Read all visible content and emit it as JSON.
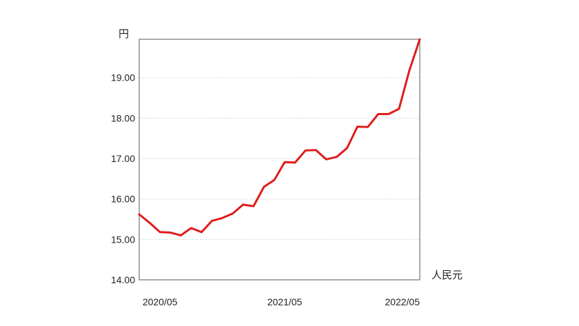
{
  "chart_data": {
    "type": "line",
    "title": "",
    "ylabel_top": "円",
    "xlabel_right": "人民元",
    "ylim": [
      14.0,
      19.95
    ],
    "yticks": [
      "14.00",
      "15.00",
      "16.00",
      "17.00",
      "18.00",
      "19.00"
    ],
    "ytick_values": [
      14.0,
      15.0,
      16.0,
      17.0,
      18.0,
      19.0
    ],
    "xlim": [
      "2020-03",
      "2022-06"
    ],
    "xticks": [
      {
        "label": "2020/05",
        "value": "2020-05"
      },
      {
        "label": "2021/05",
        "value": "2021-05"
      },
      {
        "label": "2022/05",
        "value": "2022-05"
      }
    ],
    "grid": "horizontal dotted",
    "series": [
      {
        "color": "#e01b1b",
        "points": [
          {
            "x": "2020-03",
            "y": 15.62
          },
          {
            "x": "2020-04",
            "y": 15.41
          },
          {
            "x": "2020-05",
            "y": 15.18
          },
          {
            "x": "2020-06",
            "y": 15.17
          },
          {
            "x": "2020-07",
            "y": 15.1
          },
          {
            "x": "2020-08",
            "y": 15.28
          },
          {
            "x": "2020-09",
            "y": 15.18
          },
          {
            "x": "2020-10",
            "y": 15.46
          },
          {
            "x": "2020-11",
            "y": 15.53
          },
          {
            "x": "2020-12",
            "y": 15.64
          },
          {
            "x": "2021-01",
            "y": 15.86
          },
          {
            "x": "2021-02",
            "y": 15.82
          },
          {
            "x": "2021-03",
            "y": 16.3
          },
          {
            "x": "2021-04",
            "y": 16.47
          },
          {
            "x": "2021-05",
            "y": 16.91
          },
          {
            "x": "2021-06",
            "y": 16.9
          },
          {
            "x": "2021-07",
            "y": 17.2
          },
          {
            "x": "2021-08",
            "y": 17.21
          },
          {
            "x": "2021-09",
            "y": 16.98
          },
          {
            "x": "2021-10",
            "y": 17.04
          },
          {
            "x": "2021-11",
            "y": 17.26
          },
          {
            "x": "2021-12",
            "y": 17.79
          },
          {
            "x": "2022-01",
            "y": 17.78
          },
          {
            "x": "2022-02",
            "y": 18.1
          },
          {
            "x": "2022-03",
            "y": 18.1
          },
          {
            "x": "2022-04",
            "y": 18.23
          },
          {
            "x": "2022-05",
            "y": 19.18
          },
          {
            "x": "2022-06",
            "y": 19.95
          }
        ]
      }
    ]
  }
}
